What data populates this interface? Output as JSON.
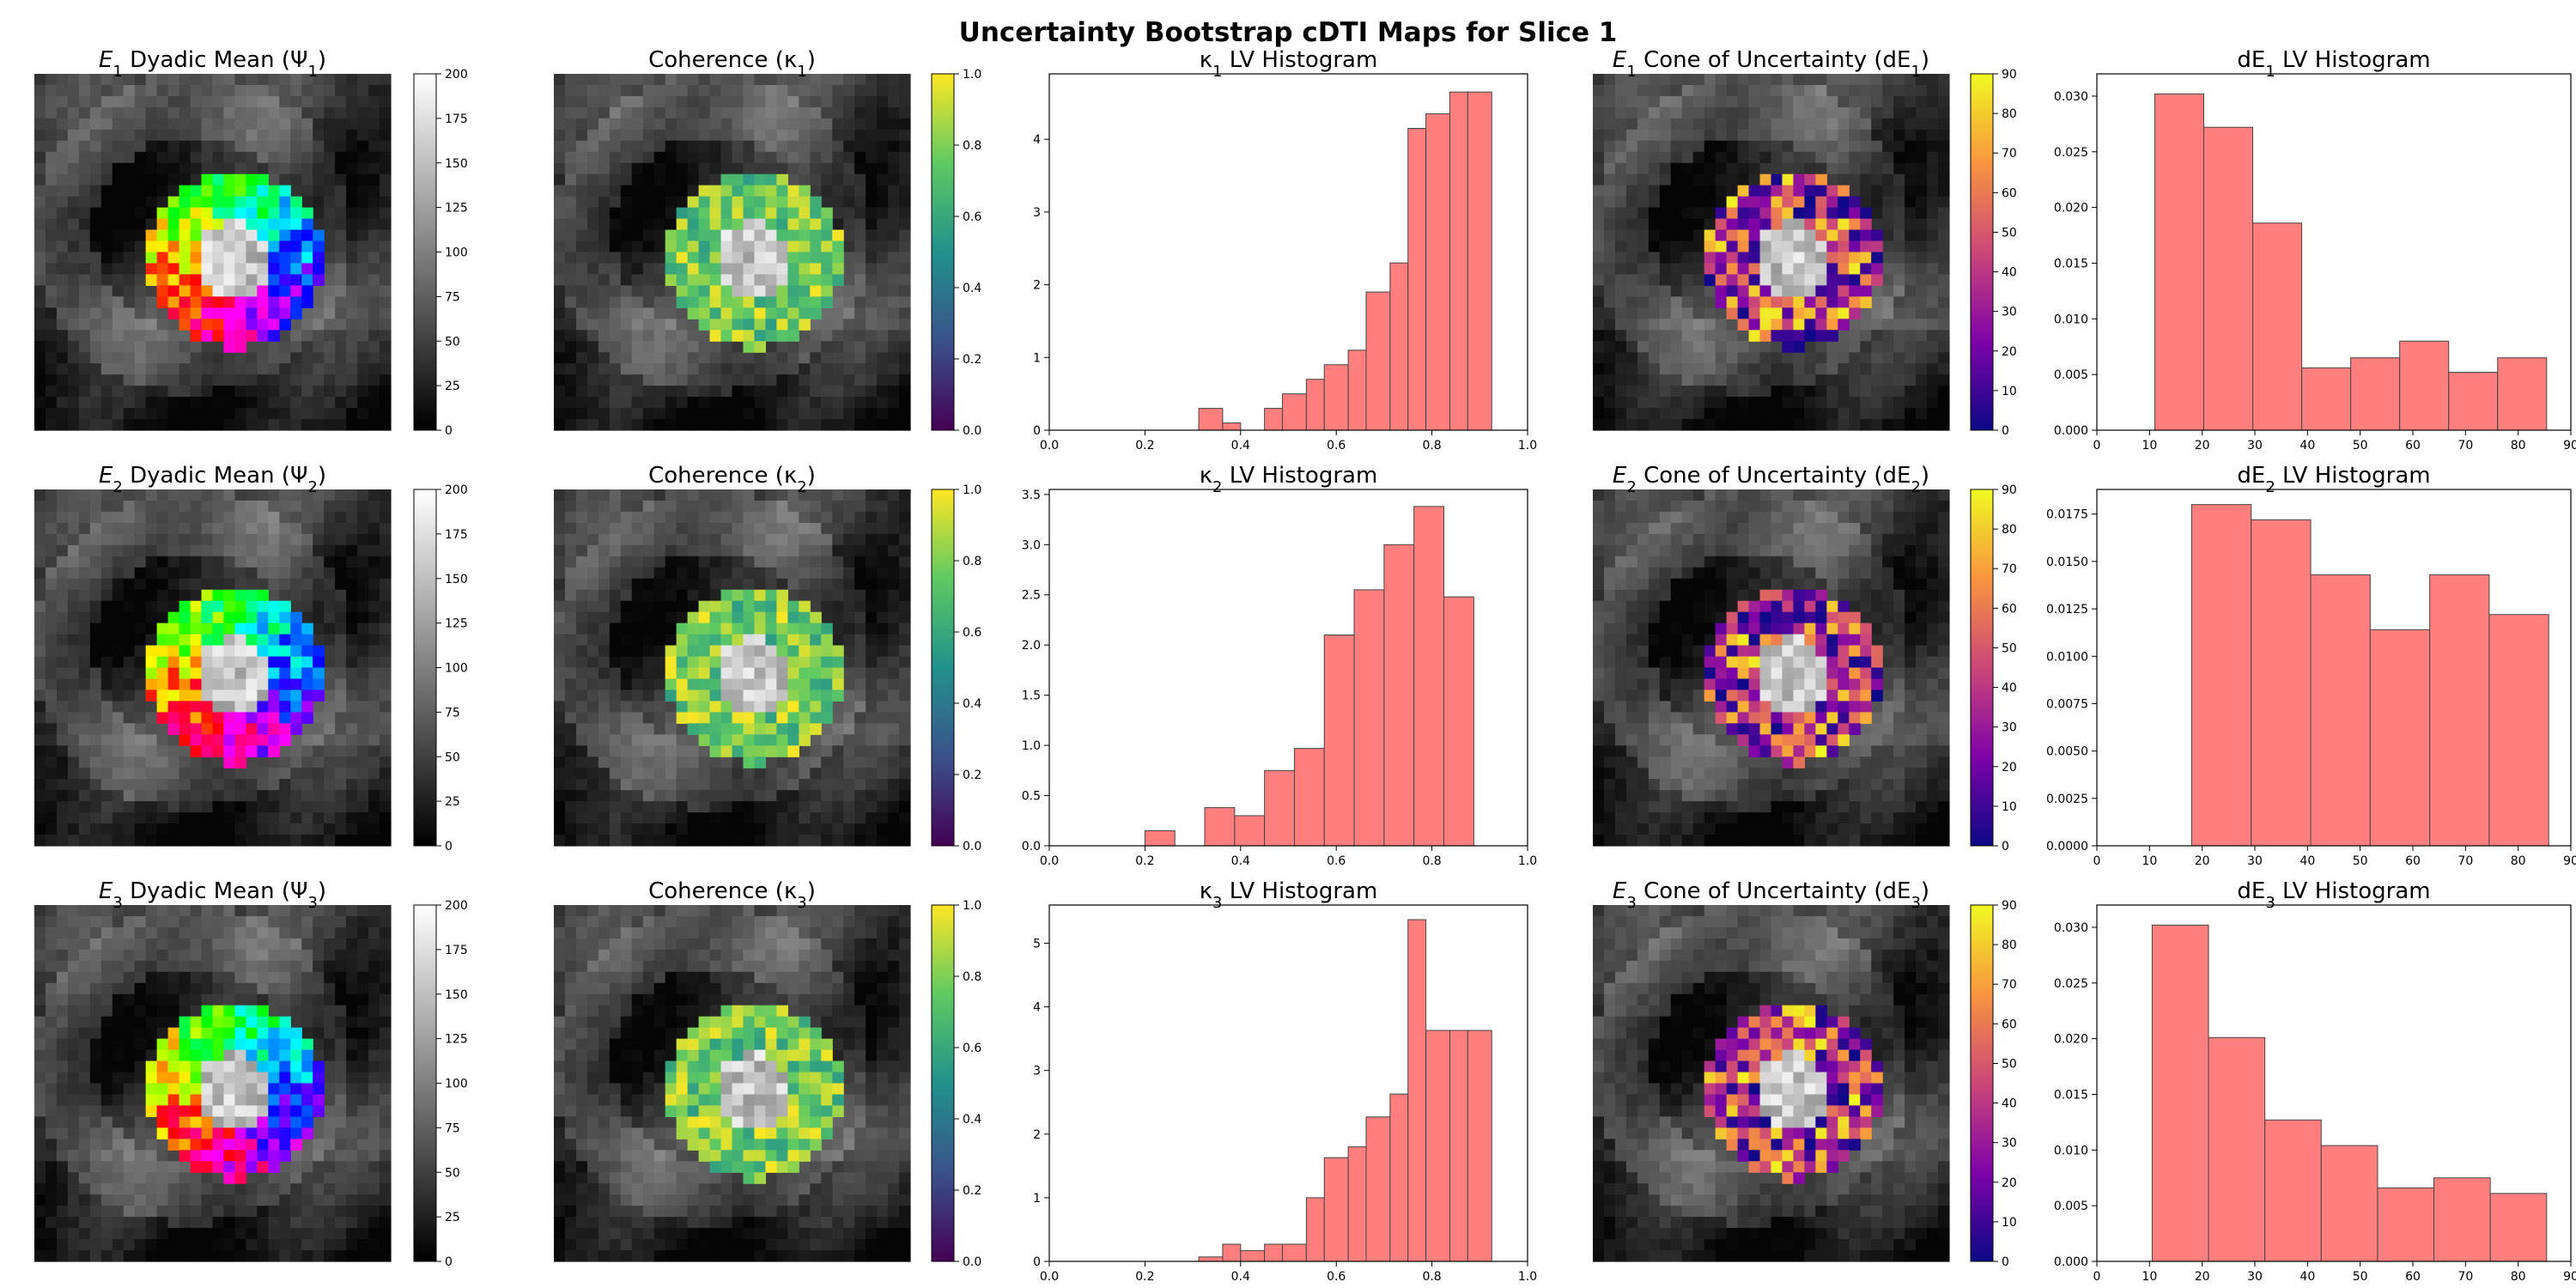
{
  "title": "Uncertainty Bootstrap cDTI Maps for Slice 1",
  "colors": {
    "bar_fill": "#ff7f7f",
    "bar_edge": "#444444",
    "gray_cmap": [
      "#000000",
      "#ffffff"
    ],
    "viridis": [
      "#440154",
      "#3b528b",
      "#21918c",
      "#5ec962",
      "#fde725"
    ],
    "plasma": [
      "#0d0887",
      "#7e03a8",
      "#cc4778",
      "#f89540",
      "#f0f921"
    ]
  },
  "chart_data": [
    {
      "type": "heatmap",
      "panel": "dyadic-1",
      "title_base": "E",
      "title_sub": "1",
      "title_mid": " Dyadic Mean  (Ψ",
      "title_sub2": "1",
      "title_end": ")",
      "colormap": "gray",
      "colorbar": {
        "min": 0,
        "max": 200,
        "ticks": [
          0,
          25,
          50,
          75,
          100,
          125,
          150,
          175,
          200
        ]
      }
    },
    {
      "type": "heatmap",
      "panel": "coherence-1",
      "title_base": "Coherence (κ",
      "title_sub": "1",
      "title_end": ")",
      "colormap": "viridis",
      "colorbar": {
        "min": 0,
        "max": 1,
        "ticks": [
          0.0,
          0.2,
          0.4,
          0.6,
          0.8,
          1.0
        ]
      }
    },
    {
      "type": "bar",
      "panel": "kappa-hist-1",
      "title_base": "κ",
      "title_sub": "1",
      "title_end": " LV Histogram",
      "xlim": [
        0,
        1
      ],
      "xticks": [
        0.0,
        0.2,
        0.4,
        0.6,
        0.8,
        1.0
      ],
      "ylim": [
        0,
        4.9
      ],
      "yticks": [
        0,
        1,
        2,
        3,
        4
      ],
      "bin_edges": [
        0.3125,
        0.3625,
        0.4,
        0.45,
        0.4875,
        0.5375,
        0.575,
        0.625,
        0.6625,
        0.7125,
        0.75,
        0.7875,
        0.8375,
        0.875,
        0.925
      ],
      "values": [
        0.3,
        0.1,
        0.0,
        0.3,
        0.5,
        0.7,
        0.9,
        1.1,
        1.9,
        2.3,
        4.15,
        4.35,
        4.65,
        4.65
      ]
    },
    {
      "type": "heatmap",
      "panel": "cone-1",
      "title_base": "E",
      "title_sub": "1",
      "title_mid": " Cone of Uncertainty (dE",
      "title_sub2": "1",
      "title_end": ")",
      "colormap": "plasma",
      "colorbar": {
        "min": 0,
        "max": 90,
        "ticks": [
          0,
          10,
          20,
          30,
          40,
          50,
          60,
          70,
          80,
          90
        ]
      }
    },
    {
      "type": "bar",
      "panel": "de-hist-1",
      "title_base": "dE",
      "title_sub": "1",
      "title_end": " LV Histogram",
      "xlim": [
        0,
        90
      ],
      "xticks": [
        0,
        10,
        20,
        30,
        40,
        50,
        60,
        70,
        80,
        90
      ],
      "ylim": [
        0,
        0.032
      ],
      "yticks": [
        0.0,
        0.005,
        0.01,
        0.015,
        0.02,
        0.025,
        0.03
      ],
      "bin_edges": [
        11,
        20.3,
        29.6,
        38.9,
        48.2,
        57.5,
        66.8,
        76.1,
        85.4
      ],
      "values": [
        0.0302,
        0.0272,
        0.0186,
        0.0056,
        0.0065,
        0.008,
        0.0052,
        0.0065
      ]
    },
    {
      "type": "heatmap",
      "panel": "dyadic-2",
      "title_base": "E",
      "title_sub": "2",
      "title_mid": " Dyadic Mean  (Ψ",
      "title_sub2": "2",
      "title_end": ")",
      "colormap": "gray",
      "colorbar": {
        "min": 0,
        "max": 200,
        "ticks": [
          0,
          25,
          50,
          75,
          100,
          125,
          150,
          175,
          200
        ]
      }
    },
    {
      "type": "heatmap",
      "panel": "coherence-2",
      "title_base": "Coherence (κ",
      "title_sub": "2",
      "title_end": ")",
      "colormap": "viridis",
      "colorbar": {
        "min": 0,
        "max": 1,
        "ticks": [
          0.0,
          0.2,
          0.4,
          0.6,
          0.8,
          1.0
        ]
      }
    },
    {
      "type": "bar",
      "panel": "kappa-hist-2",
      "title_base": "κ",
      "title_sub": "2",
      "title_end": " LV Histogram",
      "xlim": [
        0,
        1
      ],
      "xticks": [
        0.0,
        0.2,
        0.4,
        0.6,
        0.8,
        1.0
      ],
      "ylim": [
        0,
        3.55
      ],
      "yticks": [
        0.0,
        0.5,
        1.0,
        1.5,
        2.0,
        2.5,
        3.0,
        3.5
      ],
      "bin_edges": [
        0.2,
        0.2625,
        0.325,
        0.3875,
        0.45,
        0.5125,
        0.575,
        0.6375,
        0.7,
        0.7625,
        0.825,
        0.8875
      ],
      "values": [
        0.15,
        0.0,
        0.38,
        0.3,
        0.75,
        0.97,
        2.1,
        2.55,
        3.0,
        3.38,
        2.48
      ]
    },
    {
      "type": "heatmap",
      "panel": "cone-2",
      "title_base": "E",
      "title_sub": "2",
      "title_mid": " Cone of Uncertainty (dE",
      "title_sub2": "2",
      "title_end": ")",
      "colormap": "plasma",
      "colorbar": {
        "min": 0,
        "max": 90,
        "ticks": [
          0,
          10,
          20,
          30,
          40,
          50,
          60,
          70,
          80,
          90
        ]
      }
    },
    {
      "type": "bar",
      "panel": "de-hist-2",
      "title_base": "dE",
      "title_sub": "2",
      "title_end": " LV Histogram",
      "xlim": [
        0,
        90
      ],
      "xticks": [
        0,
        10,
        20,
        30,
        40,
        50,
        60,
        70,
        80,
        90
      ],
      "ylim": [
        0,
        0.0188
      ],
      "yticks": [
        0.0,
        0.0025,
        0.005,
        0.0075,
        0.01,
        0.0125,
        0.015,
        0.0175
      ],
      "bin_edges": [
        18,
        29.3,
        40.6,
        51.9,
        63.2,
        74.5,
        85.8
      ],
      "values": [
        0.018,
        0.0172,
        0.0143,
        0.0114,
        0.0143,
        0.0122
      ]
    },
    {
      "type": "heatmap",
      "panel": "dyadic-3",
      "title_base": "E",
      "title_sub": "3",
      "title_mid": " Dyadic Mean  (Ψ",
      "title_sub2": "3",
      "title_end": ")",
      "colormap": "gray",
      "colorbar": {
        "min": 0,
        "max": 200,
        "ticks": [
          0,
          25,
          50,
          75,
          100,
          125,
          150,
          175,
          200
        ]
      }
    },
    {
      "type": "heatmap",
      "panel": "coherence-3",
      "title_base": "Coherence (κ",
      "title_sub": "3",
      "title_end": ")",
      "colormap": "viridis",
      "colorbar": {
        "min": 0,
        "max": 1,
        "ticks": [
          0.0,
          0.2,
          0.4,
          0.6,
          0.8,
          1.0
        ]
      }
    },
    {
      "type": "bar",
      "panel": "kappa-hist-3",
      "title_base": "κ",
      "title_sub": "3",
      "title_end": " LV Histogram",
      "xlim": [
        0,
        1
      ],
      "xticks": [
        0.0,
        0.2,
        0.4,
        0.6,
        0.8,
        1.0
      ],
      "ylim": [
        0,
        5.6
      ],
      "yticks": [
        0,
        1,
        2,
        3,
        4,
        5
      ],
      "bin_edges": [
        0.3125,
        0.3625,
        0.4,
        0.45,
        0.4875,
        0.5375,
        0.575,
        0.625,
        0.6625,
        0.7125,
        0.75,
        0.7875,
        0.8375,
        0.875,
        0.925
      ],
      "values": [
        0.07,
        0.27,
        0.17,
        0.27,
        0.27,
        1.0,
        1.63,
        1.8,
        2.27,
        2.63,
        5.37,
        3.63,
        3.63,
        3.63
      ]
    },
    {
      "type": "heatmap",
      "panel": "cone-3",
      "title_base": "E",
      "title_sub": "3",
      "title_mid": " Cone of Uncertainty (dE",
      "title_sub2": "3",
      "title_end": ")",
      "colormap": "plasma",
      "colorbar": {
        "min": 0,
        "max": 90,
        "ticks": [
          0,
          10,
          20,
          30,
          40,
          50,
          60,
          70,
          80,
          90
        ]
      }
    },
    {
      "type": "bar",
      "panel": "de-hist-3",
      "title_base": "dE",
      "title_sub": "3",
      "title_end": " LV Histogram",
      "xlim": [
        0,
        90
      ],
      "xticks": [
        0,
        10,
        20,
        30,
        40,
        50,
        60,
        70,
        80,
        90
      ],
      "ylim": [
        0,
        0.032
      ],
      "yticks": [
        0.0,
        0.005,
        0.01,
        0.015,
        0.02,
        0.025,
        0.03
      ],
      "bin_edges": [
        10.5,
        21.2,
        31.9,
        42.6,
        53.3,
        64.0,
        74.7,
        85.4
      ],
      "values": [
        0.0302,
        0.0201,
        0.0127,
        0.0104,
        0.0066,
        0.0075,
        0.0061
      ]
    }
  ]
}
